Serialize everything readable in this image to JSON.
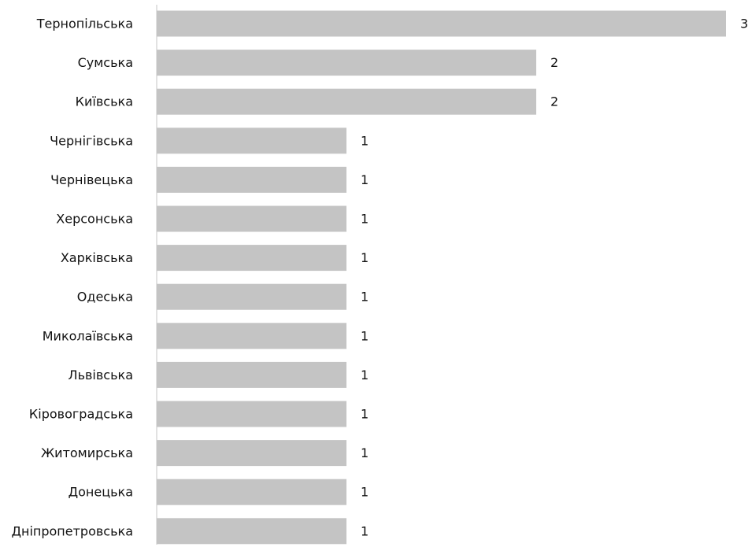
{
  "chart_data": {
    "type": "bar",
    "orientation": "horizontal",
    "categories": [
      "Тернопільська",
      "Сумська",
      "Київська",
      "Чернігівська",
      "Чернівецька",
      "Херсонська",
      "Харківська",
      "Одеська",
      "Миколаївська",
      "Львівська",
      "Кіровоградська",
      "Житомирська",
      "Донецька",
      "Дніпропетровська"
    ],
    "values": [
      3,
      2,
      2,
      1,
      1,
      1,
      1,
      1,
      1,
      1,
      1,
      1,
      1,
      1
    ],
    "data_labels": [
      "3",
      "2",
      "2",
      "1",
      "1",
      "1",
      "1",
      "1",
      "1",
      "1",
      "1",
      "1",
      "1",
      "1"
    ],
    "xlim": [
      0,
      3
    ],
    "grid": false,
    "legend": "none",
    "bar_color": "#c4c4c4",
    "axis_color": "#c4c4c4",
    "text_color": "#111111"
  }
}
